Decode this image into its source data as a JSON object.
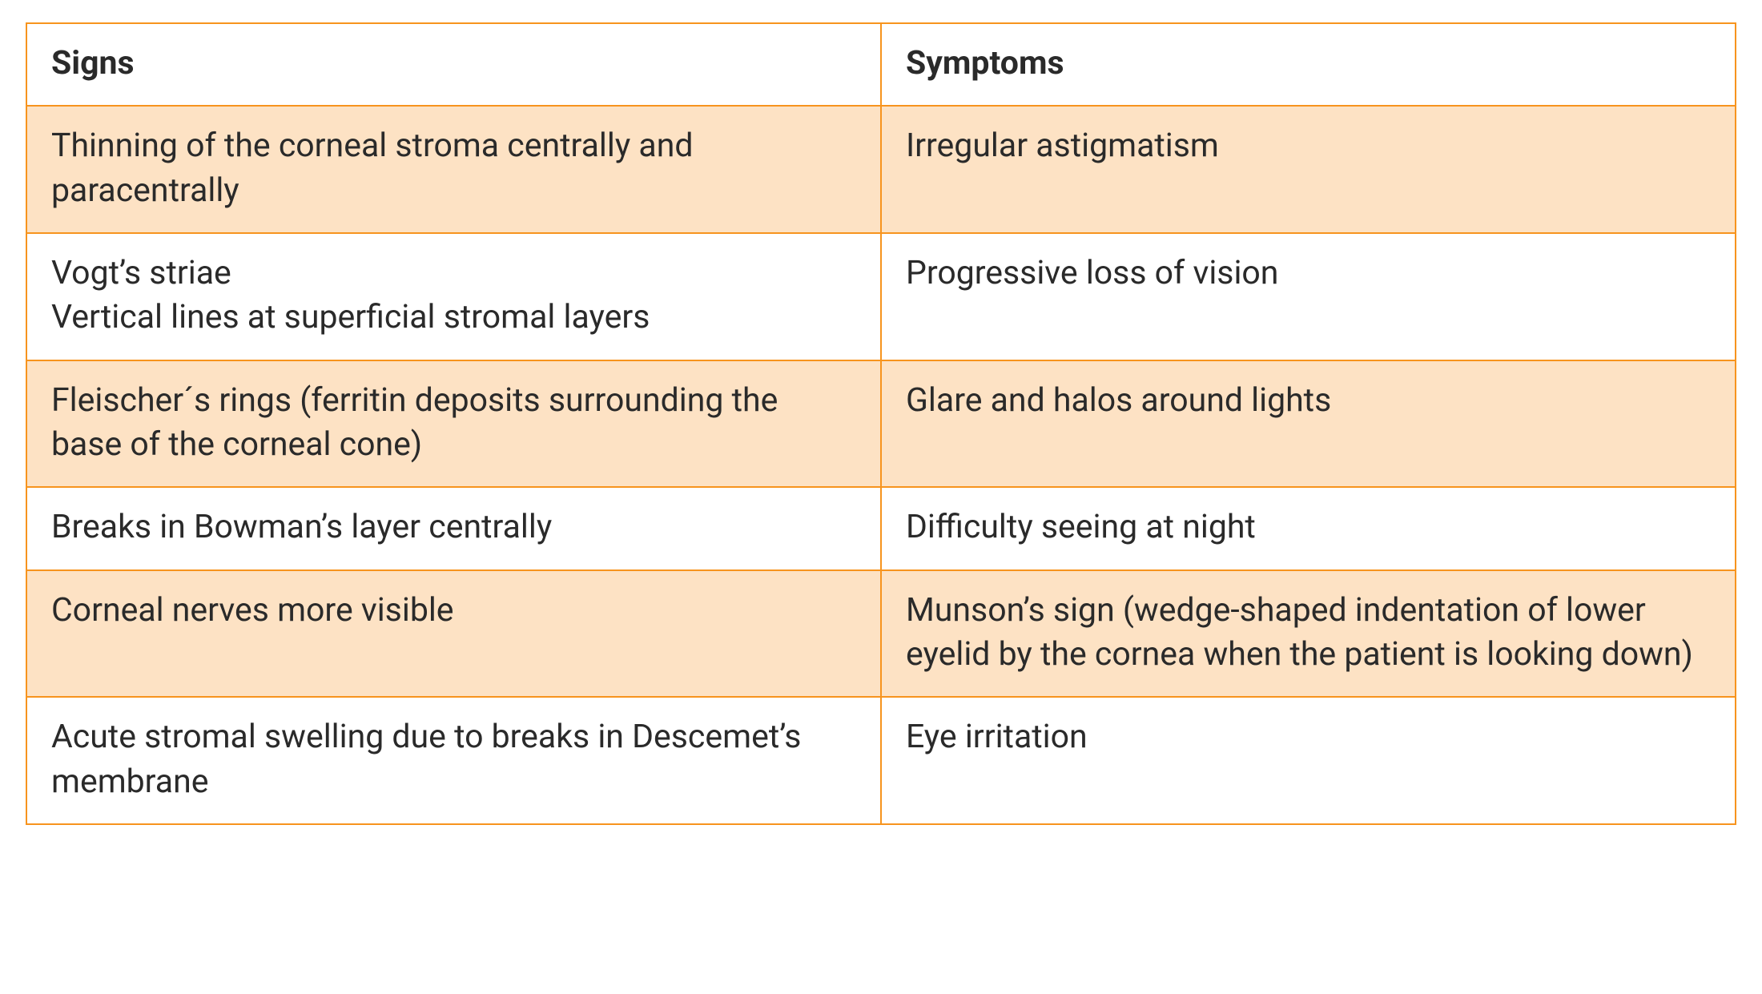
{
  "table": {
    "type": "table",
    "columns": [
      {
        "key": "signs",
        "header": "Signs",
        "width_pct": 50,
        "align": "left"
      },
      {
        "key": "symptoms",
        "header": "Symptoms",
        "width_pct": 50,
        "align": "left"
      }
    ],
    "rows": [
      {
        "signs": "Thinning of the corneal stroma centrally and paracentrally",
        "symptoms": "Irregular astigmatism"
      },
      {
        "signs": "Vogt’s striae\nVertical lines at superficial stromal layers",
        "symptoms": "Progressive loss of vision"
      },
      {
        "signs": "Fleischer´s rings (ferritin deposits surrounding the base of the corneal cone)",
        "symptoms": "Glare and halos around lights"
      },
      {
        "signs": "Breaks in Bowman’s layer centrally",
        "symptoms": "Difficulty seeing at night"
      },
      {
        "signs": "Corneal nerves more visible",
        "symptoms": "Munson’s sign (wedge-shaped indentation of lower eyelid by the cornea when the patient is looking down)"
      },
      {
        "signs": "Acute stromal swelling due to breaks in Descemet’s membrane",
        "symptoms": "Eye irritation"
      }
    ],
    "style": {
      "border_color": "#f7941e",
      "header_bg": "#ffffff",
      "row_shaded_bg": "#fde2c4",
      "row_plain_bg": "#ffffff",
      "text_color": "#2a2a2a",
      "font_size_pt": 31,
      "header_font_weight": 700,
      "cell_font_weight": 400,
      "row_striping": [
        "shaded",
        "plain",
        "shaded",
        "plain",
        "shaded",
        "plain"
      ]
    }
  }
}
